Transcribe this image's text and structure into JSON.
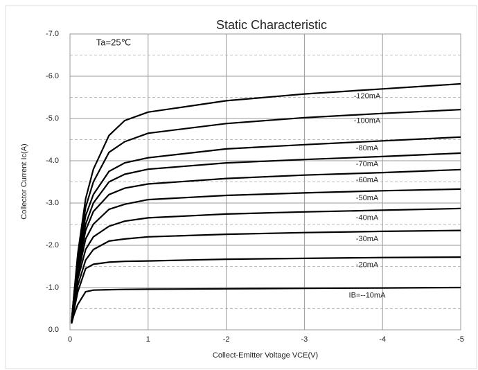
{
  "chart_data": {
    "type": "line",
    "title": "Static Characteristic",
    "annotation": "Ta=25℃",
    "x_label": "Collect-Emitter Voltage  VCE(V)",
    "y_label": "Collector Current  Ic(A)",
    "xlim": [
      0,
      -5
    ],
    "ylim": [
      0,
      -7
    ],
    "xticks": [
      0,
      {
        "value": -1,
        "label": "1"
      },
      -2,
      -3,
      -4,
      -5
    ],
    "yticks": [
      {
        "value": 0,
        "label": "0.0"
      },
      {
        "value": -1,
        "label": "-1.0"
      },
      {
        "value": -2,
        "label": "-2.0"
      },
      {
        "value": -3,
        "label": "-3.0"
      },
      {
        "value": -4,
        "label": "-4.0"
      },
      {
        "value": -5,
        "label": "-5.0"
      },
      {
        "value": -6,
        "label": "-6.0"
      },
      {
        "value": -7,
        "label": "-7.0"
      }
    ],
    "minor_yticks": [
      -0.5,
      -1.5,
      -2.5,
      -3.5,
      -4.5,
      -5.5,
      -6.5
    ],
    "grid": true,
    "color": "#000000",
    "x": [
      -0.02,
      -0.05,
      -0.1,
      -0.2,
      -0.3,
      -0.5,
      -0.7,
      -1,
      -2,
      -3,
      -4,
      -5
    ],
    "series": [
      {
        "name": "-120mA",
        "values": [
          -0.2,
          -0.8,
          -1.8,
          -3.1,
          -3.8,
          -4.6,
          -4.95,
          -5.15,
          -5.42,
          -5.58,
          -5.7,
          -5.82
        ]
      },
      {
        "name": "-100mA",
        "values": [
          -0.2,
          -0.8,
          -1.7,
          -2.9,
          -3.5,
          -4.2,
          -4.45,
          -4.65,
          -4.88,
          -5.02,
          -5.12,
          -5.21
        ]
      },
      {
        "name": "-80mA",
        "values": [
          -0.2,
          -0.75,
          -1.6,
          -2.7,
          -3.2,
          -3.75,
          -3.95,
          -4.07,
          -4.28,
          -4.38,
          -4.47,
          -4.56
        ]
      },
      {
        "name": "-70mA",
        "values": [
          -0.2,
          -0.7,
          -1.5,
          -2.5,
          -3.0,
          -3.5,
          -3.68,
          -3.8,
          -3.95,
          -4.03,
          -4.1,
          -4.18
        ]
      },
      {
        "name": "-60mA",
        "values": [
          -0.18,
          -0.65,
          -1.4,
          -2.35,
          -2.8,
          -3.2,
          -3.35,
          -3.45,
          -3.58,
          -3.66,
          -3.72,
          -3.79
        ]
      },
      {
        "name": "-50mA",
        "values": [
          -0.18,
          -0.6,
          -1.3,
          -2.15,
          -2.5,
          -2.85,
          -2.97,
          -3.08,
          -3.18,
          -3.24,
          -3.29,
          -3.33
        ]
      },
      {
        "name": "-40mA",
        "values": [
          -0.17,
          -0.55,
          -1.2,
          -1.9,
          -2.2,
          -2.45,
          -2.57,
          -2.65,
          -2.74,
          -2.79,
          -2.83,
          -2.87
        ]
      },
      {
        "name": "-30mA",
        "values": [
          -0.16,
          -0.5,
          -1.05,
          -1.65,
          -1.9,
          -2.1,
          -2.15,
          -2.2,
          -2.26,
          -2.3,
          -2.33,
          -2.35
        ]
      },
      {
        "name": "-20mA",
        "values": [
          -0.15,
          -0.45,
          -0.9,
          -1.45,
          -1.55,
          -1.6,
          -1.62,
          -1.63,
          -1.67,
          -1.69,
          -1.71,
          -1.72
        ]
      },
      {
        "name": "IB=--10mA",
        "values": [
          -0.15,
          -0.35,
          -0.6,
          -0.9,
          -0.94,
          -0.95,
          -0.955,
          -0.96,
          -0.97,
          -0.98,
          -0.99,
          -1.0
        ]
      }
    ]
  }
}
